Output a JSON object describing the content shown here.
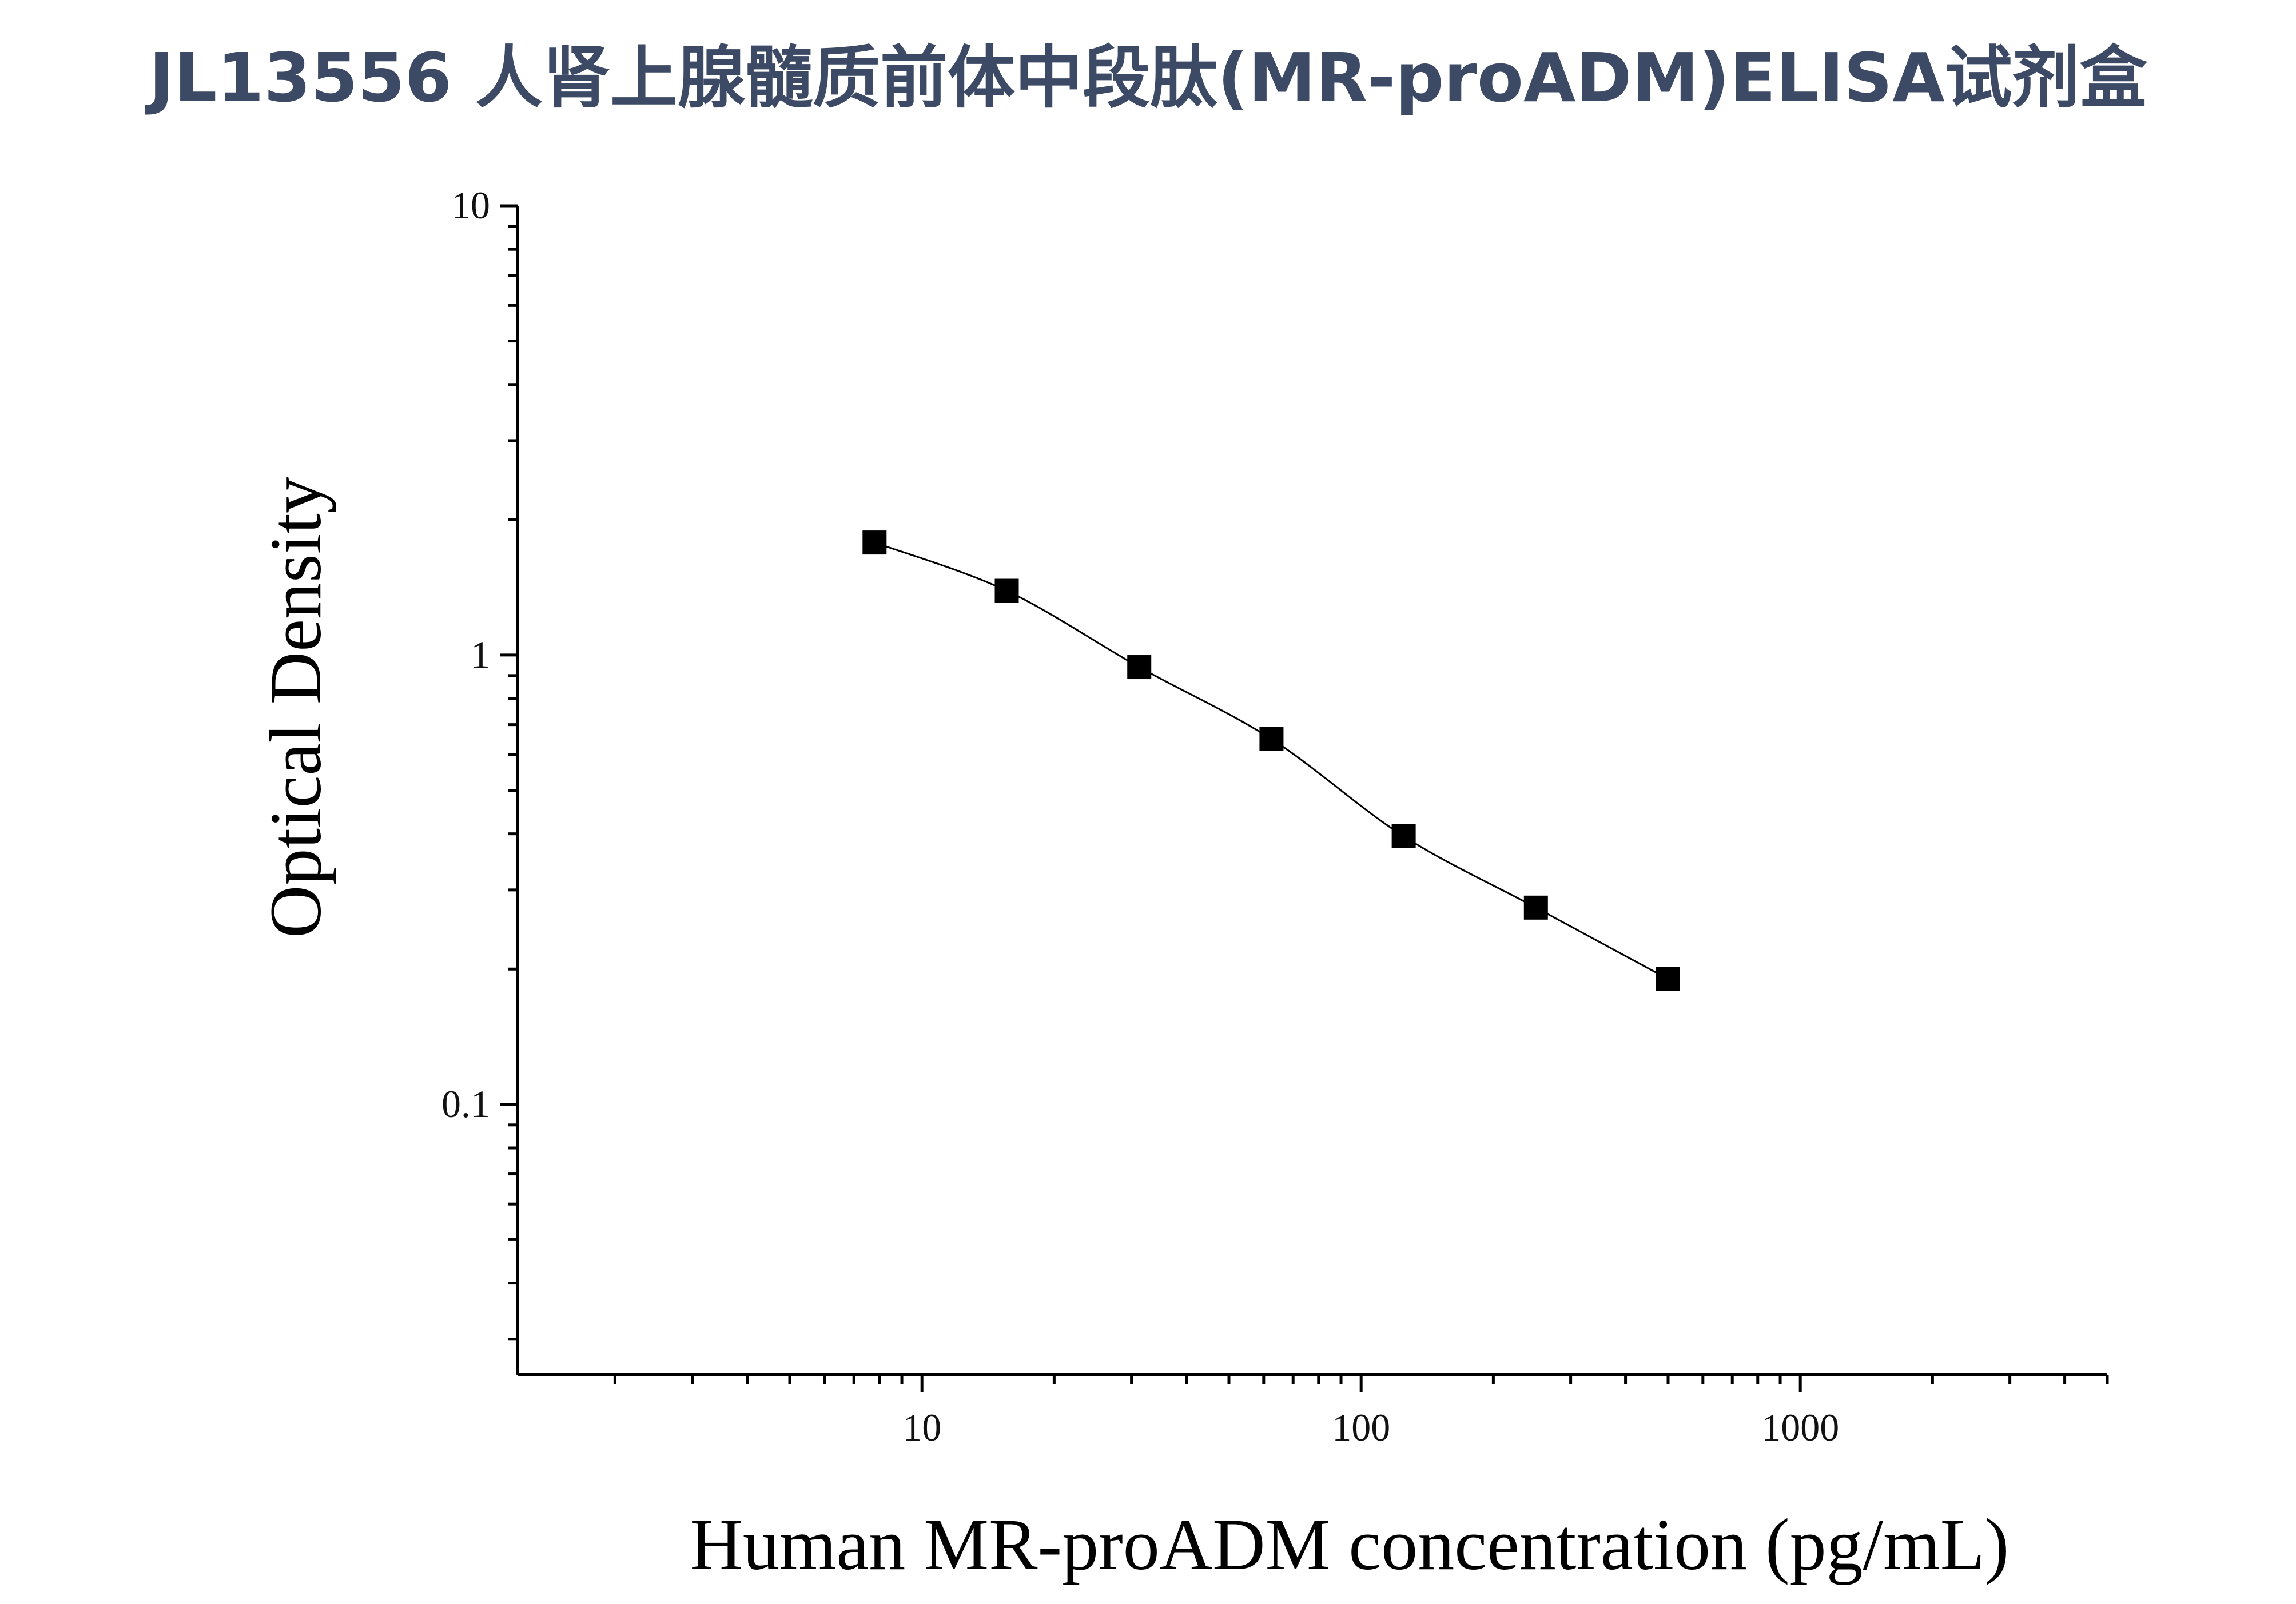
{
  "title": "JL13556 人肾上腺髓质前体中段肽(MR-proADM)ELISA试剂盒",
  "chart_data": {
    "type": "scatter",
    "title": "JL13556 人肾上腺髓质前体中段肽(MR-proADM)ELISA试剂盒",
    "xlabel": "Human MR-proADM concentration (pg/mL)",
    "ylabel": "Optical Density",
    "x_scale": "log",
    "y_scale": "log",
    "xlim": [
      1.2,
      5000
    ],
    "ylim": [
      0.025,
      10
    ],
    "x_ticks": [
      10,
      100,
      1000
    ],
    "x_tick_labels": [
      "10",
      "100",
      "1000"
    ],
    "y_ticks": [
      0.1,
      1,
      10
    ],
    "y_tick_labels": [
      "0.1",
      "1",
      "10"
    ],
    "grid": false,
    "legend": "none",
    "series": [
      {
        "x": [
          7.8,
          15.6,
          31.25,
          62.5,
          125,
          250,
          500
        ],
        "y": [
          1.78,
          1.39,
          0.94,
          0.65,
          0.395,
          0.274,
          0.19
        ],
        "marker": "square",
        "fit_curve": true
      }
    ],
    "colors": {
      "marker": "#000000",
      "line": "#000000",
      "title": "#3d4a66"
    }
  }
}
